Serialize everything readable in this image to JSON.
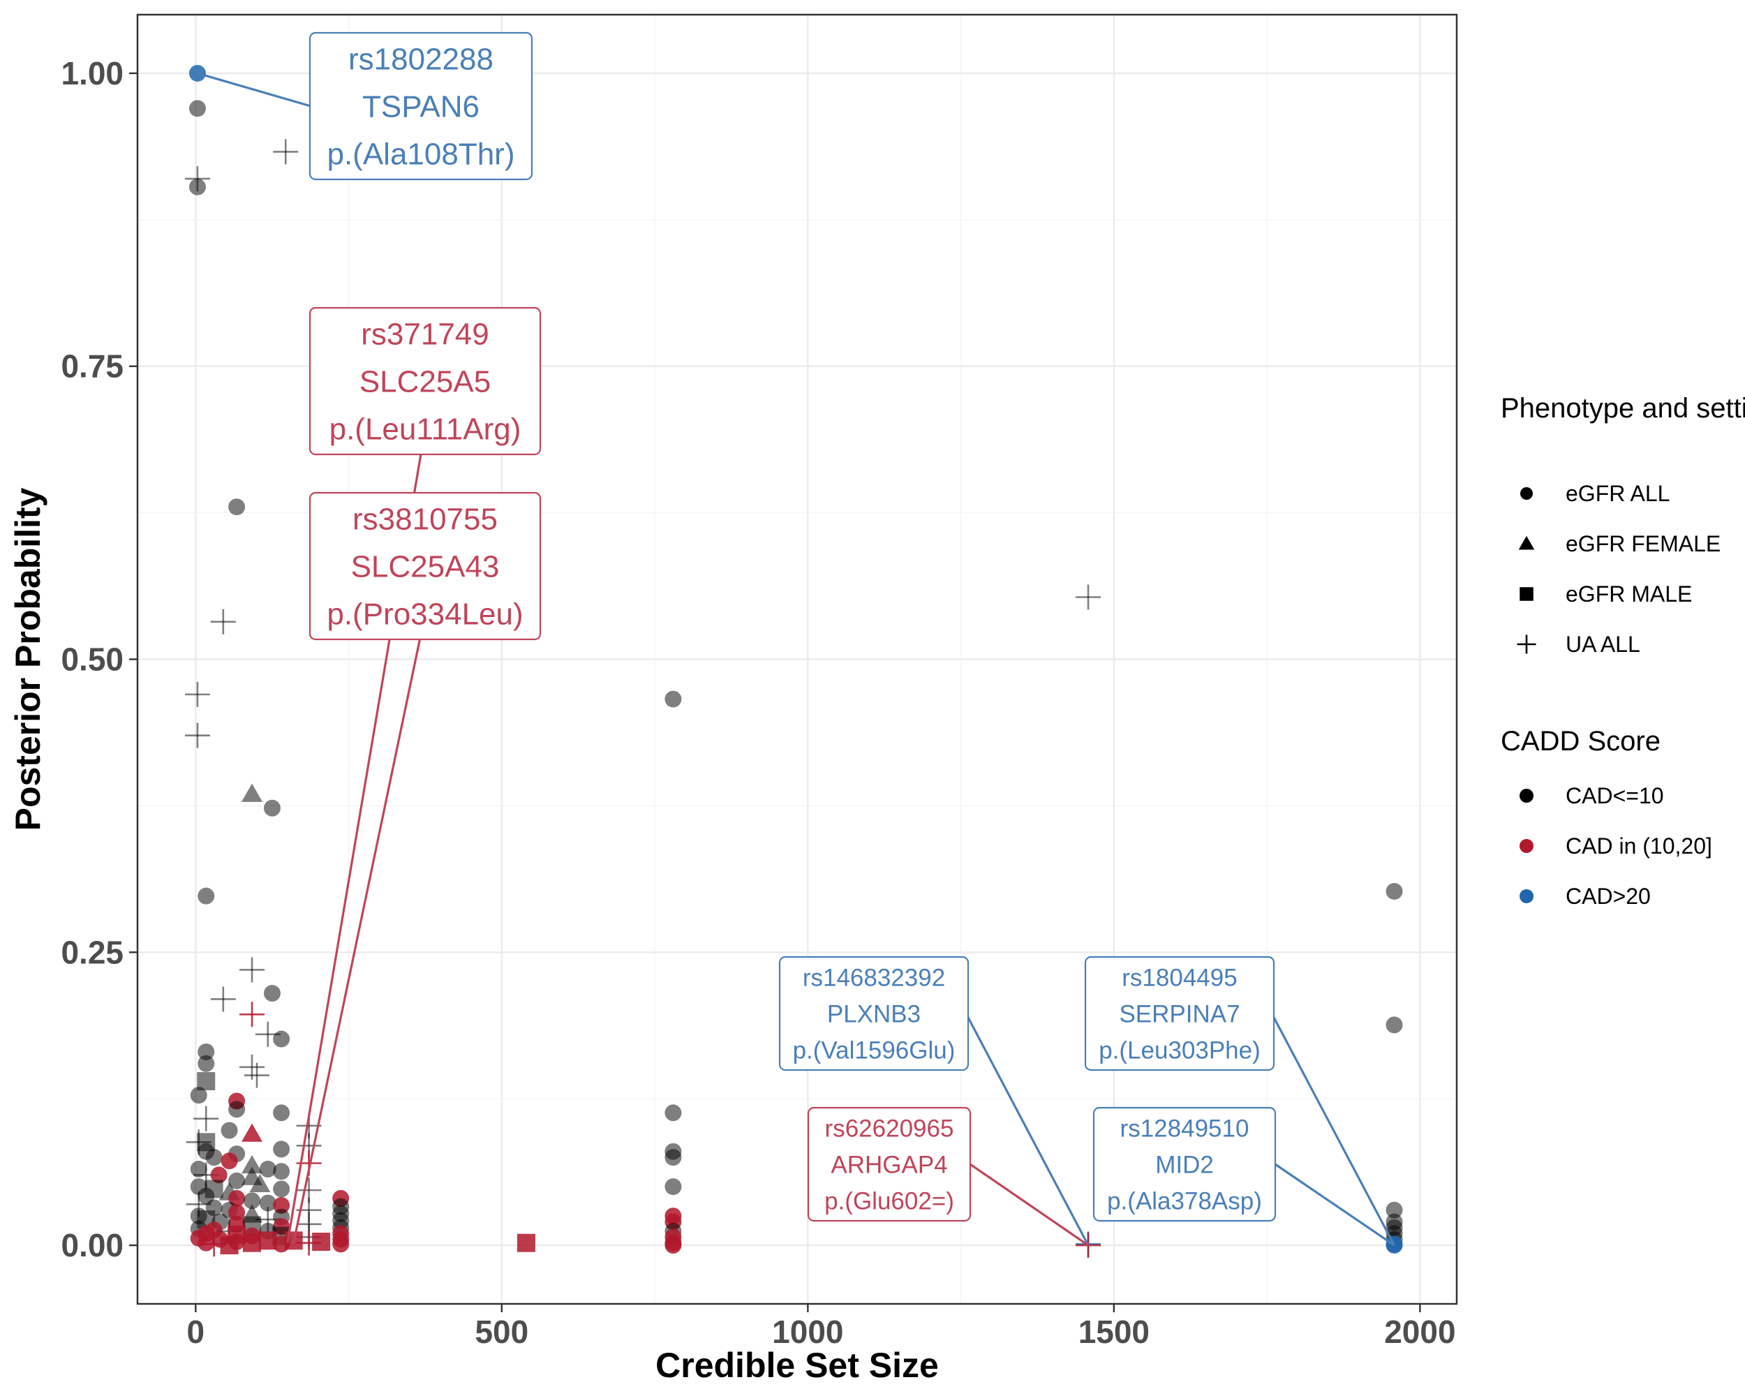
{
  "chart_data": {
    "type": "scatter",
    "xlabel": "Credible Set Size",
    "ylabel": "Posterior Probability",
    "xlim": [
      -95,
      2060
    ],
    "ylim": [
      -0.05,
      1.05
    ],
    "x_ticks": [
      0,
      500,
      1000,
      1500,
      2000
    ],
    "x_tick_labels": [
      "0",
      "500",
      "1000",
      "1500",
      "2000"
    ],
    "y_ticks": [
      0,
      0.25,
      0.5,
      0.75,
      1.0
    ],
    "y_tick_labels": [
      "0.00",
      "0.25",
      "0.50",
      "0.75",
      "1.00"
    ],
    "grid": true,
    "colors": {
      "low": "#000000",
      "mid": "#b2182b",
      "high": "#2166ac"
    },
    "legend_shape": {
      "title": "Phenotype and setting",
      "items": [
        {
          "shape": "circle",
          "label": "eGFR ALL"
        },
        {
          "shape": "triangle",
          "label": "eGFR FEMALE"
        },
        {
          "shape": "square",
          "label": "eGFR MALE"
        },
        {
          "shape": "plus",
          "label": "UA ALL"
        }
      ]
    },
    "legend_color": {
      "title": "CADD Score",
      "items": [
        {
          "color": "#000000",
          "label": "CAD<=10"
        },
        {
          "color": "#b2182b",
          "label": "CAD in (10,20]"
        },
        {
          "color": "#2166ac",
          "label": "CAD>20"
        }
      ]
    },
    "points": [
      {
        "x": 3,
        "y": 1.0,
        "shape": "circle",
        "cat": "high"
      },
      {
        "x": 3,
        "y": 0.97,
        "shape": "circle",
        "cat": "low"
      },
      {
        "x": 3,
        "y": 0.903,
        "shape": "circle",
        "cat": "low"
      },
      {
        "x": 3,
        "y": 0.91,
        "shape": "plus",
        "cat": "low"
      },
      {
        "x": 147,
        "y": 0.933,
        "shape": "plus",
        "cat": "low"
      },
      {
        "x": 67,
        "y": 0.63,
        "shape": "circle",
        "cat": "low"
      },
      {
        "x": 45,
        "y": 0.532,
        "shape": "plus",
        "cat": "low"
      },
      {
        "x": 3,
        "y": 0.47,
        "shape": "plus",
        "cat": "low"
      },
      {
        "x": 3,
        "y": 0.435,
        "shape": "plus",
        "cat": "low"
      },
      {
        "x": 92,
        "y": 0.385,
        "shape": "triangle",
        "cat": "low"
      },
      {
        "x": 125,
        "y": 0.373,
        "shape": "circle",
        "cat": "low"
      },
      {
        "x": 17,
        "y": 0.298,
        "shape": "circle",
        "cat": "low"
      },
      {
        "x": 92,
        "y": 0.235,
        "shape": "plus",
        "cat": "low"
      },
      {
        "x": 45,
        "y": 0.21,
        "shape": "plus",
        "cat": "low"
      },
      {
        "x": 125,
        "y": 0.215,
        "shape": "circle",
        "cat": "low"
      },
      {
        "x": 92,
        "y": 0.197,
        "shape": "plus",
        "cat": "mid"
      },
      {
        "x": 118,
        "y": 0.18,
        "shape": "plus",
        "cat": "low"
      },
      {
        "x": 140,
        "y": 0.176,
        "shape": "circle",
        "cat": "low"
      },
      {
        "x": 17,
        "y": 0.165,
        "shape": "circle",
        "cat": "low"
      },
      {
        "x": 17,
        "y": 0.155,
        "shape": "circle",
        "cat": "low"
      },
      {
        "x": 92,
        "y": 0.152,
        "shape": "plus",
        "cat": "low"
      },
      {
        "x": 100,
        "y": 0.145,
        "shape": "plus",
        "cat": "low"
      },
      {
        "x": 17,
        "y": 0.14,
        "shape": "square",
        "cat": "low"
      },
      {
        "x": 5,
        "y": 0.128,
        "shape": "circle",
        "cat": "low"
      },
      {
        "x": 67,
        "y": 0.123,
        "shape": "circle",
        "cat": "mid"
      },
      {
        "x": 67,
        "y": 0.116,
        "shape": "circle",
        "cat": "low"
      },
      {
        "x": 140,
        "y": 0.113,
        "shape": "circle",
        "cat": "low"
      },
      {
        "x": 17,
        "y": 0.108,
        "shape": "plus",
        "cat": "low"
      },
      {
        "x": 185,
        "y": 0.102,
        "shape": "plus",
        "cat": "low"
      },
      {
        "x": 55,
        "y": 0.098,
        "shape": "circle",
        "cat": "low"
      },
      {
        "x": 92,
        "y": 0.095,
        "shape": "triangle",
        "cat": "mid"
      },
      {
        "x": 5,
        "y": 0.088,
        "shape": "plus",
        "cat": "low"
      },
      {
        "x": 17,
        "y": 0.088,
        "shape": "square",
        "cat": "low"
      },
      {
        "x": 185,
        "y": 0.085,
        "shape": "plus",
        "cat": "low"
      },
      {
        "x": 140,
        "y": 0.082,
        "shape": "circle",
        "cat": "low"
      },
      {
        "x": 17,
        "y": 0.08,
        "shape": "circle",
        "cat": "low"
      },
      {
        "x": 67,
        "y": 0.078,
        "shape": "circle",
        "cat": "low"
      },
      {
        "x": 30,
        "y": 0.075,
        "shape": "circle",
        "cat": "low"
      },
      {
        "x": 55,
        "y": 0.072,
        "shape": "circle",
        "cat": "mid"
      },
      {
        "x": 185,
        "y": 0.07,
        "shape": "plus",
        "cat": "mid"
      },
      {
        "x": 92,
        "y": 0.068,
        "shape": "triangle",
        "cat": "low"
      },
      {
        "x": 5,
        "y": 0.065,
        "shape": "circle",
        "cat": "low"
      },
      {
        "x": 118,
        "y": 0.065,
        "shape": "circle",
        "cat": "low"
      },
      {
        "x": 140,
        "y": 0.063,
        "shape": "circle",
        "cat": "low"
      },
      {
        "x": 17,
        "y": 0.06,
        "shape": "plus",
        "cat": "low"
      },
      {
        "x": 38,
        "y": 0.06,
        "shape": "circle",
        "cat": "mid"
      },
      {
        "x": 92,
        "y": 0.058,
        "shape": "triangle",
        "cat": "low"
      },
      {
        "x": 67,
        "y": 0.055,
        "shape": "circle",
        "cat": "low"
      },
      {
        "x": 105,
        "y": 0.052,
        "shape": "triangle",
        "cat": "low"
      },
      {
        "x": 5,
        "y": 0.05,
        "shape": "circle",
        "cat": "low"
      },
      {
        "x": 30,
        "y": 0.048,
        "shape": "square",
        "cat": "low"
      },
      {
        "x": 140,
        "y": 0.048,
        "shape": "circle",
        "cat": "low"
      },
      {
        "x": 185,
        "y": 0.047,
        "shape": "plus",
        "cat": "low"
      },
      {
        "x": 55,
        "y": 0.045,
        "shape": "triangle",
        "cat": "low"
      },
      {
        "x": 17,
        "y": 0.042,
        "shape": "circle",
        "cat": "low"
      },
      {
        "x": 67,
        "y": 0.04,
        "shape": "circle",
        "cat": "mid"
      },
      {
        "x": 237,
        "y": 0.04,
        "shape": "circle",
        "cat": "mid"
      },
      {
        "x": 92,
        "y": 0.038,
        "shape": "circle",
        "cat": "low"
      },
      {
        "x": 118,
        "y": 0.036,
        "shape": "circle",
        "cat": "low"
      },
      {
        "x": 5,
        "y": 0.035,
        "shape": "plus",
        "cat": "low"
      },
      {
        "x": 140,
        "y": 0.034,
        "shape": "circle",
        "cat": "mid"
      },
      {
        "x": 237,
        "y": 0.033,
        "shape": "circle",
        "cat": "low"
      },
      {
        "x": 30,
        "y": 0.032,
        "shape": "circle",
        "cat": "low"
      },
      {
        "x": 185,
        "y": 0.03,
        "shape": "plus",
        "cat": "low"
      },
      {
        "x": 55,
        "y": 0.03,
        "shape": "circle",
        "cat": "low"
      },
      {
        "x": 67,
        "y": 0.028,
        "shape": "circle",
        "cat": "mid"
      },
      {
        "x": 237,
        "y": 0.027,
        "shape": "circle",
        "cat": "low"
      },
      {
        "x": 92,
        "y": 0.026,
        "shape": "triangle",
        "cat": "low"
      },
      {
        "x": 5,
        "y": 0.025,
        "shape": "circle",
        "cat": "low"
      },
      {
        "x": 140,
        "y": 0.024,
        "shape": "circle",
        "cat": "low"
      },
      {
        "x": 17,
        "y": 0.022,
        "shape": "square",
        "cat": "low"
      },
      {
        "x": 118,
        "y": 0.022,
        "shape": "plus",
        "cat": "low"
      },
      {
        "x": 237,
        "y": 0.021,
        "shape": "circle",
        "cat": "low"
      },
      {
        "x": 40,
        "y": 0.02,
        "shape": "circle",
        "cat": "low"
      },
      {
        "x": 67,
        "y": 0.018,
        "shape": "circle",
        "cat": "mid"
      },
      {
        "x": 185,
        "y": 0.018,
        "shape": "plus",
        "cat": "low"
      },
      {
        "x": 92,
        "y": 0.017,
        "shape": "square",
        "cat": "low"
      },
      {
        "x": 140,
        "y": 0.016,
        "shape": "circle",
        "cat": "mid"
      },
      {
        "x": 237,
        "y": 0.015,
        "shape": "circle",
        "cat": "low"
      },
      {
        "x": 5,
        "y": 0.014,
        "shape": "circle",
        "cat": "low"
      },
      {
        "x": 30,
        "y": 0.013,
        "shape": "circle",
        "cat": "mid"
      },
      {
        "x": 55,
        "y": 0.012,
        "shape": "plus",
        "cat": "low"
      },
      {
        "x": 118,
        "y": 0.012,
        "shape": "circle",
        "cat": "low"
      },
      {
        "x": 237,
        "y": 0.01,
        "shape": "circle",
        "cat": "mid"
      },
      {
        "x": 17,
        "y": 0.01,
        "shape": "circle",
        "cat": "mid"
      },
      {
        "x": 67,
        "y": 0.009,
        "shape": "square",
        "cat": "mid"
      },
      {
        "x": 92,
        "y": 0.008,
        "shape": "circle",
        "cat": "mid"
      },
      {
        "x": 140,
        "y": 0.008,
        "shape": "square",
        "cat": "low"
      },
      {
        "x": 185,
        "y": 0.007,
        "shape": "plus",
        "cat": "low"
      },
      {
        "x": 5,
        "y": 0.006,
        "shape": "circle",
        "cat": "mid"
      },
      {
        "x": 237,
        "y": 0.005,
        "shape": "circle",
        "cat": "mid"
      },
      {
        "x": 40,
        "y": 0.005,
        "shape": "circle",
        "cat": "mid"
      },
      {
        "x": 118,
        "y": 0.004,
        "shape": "square",
        "cat": "mid"
      },
      {
        "x": 160,
        "y": 0.004,
        "shape": "square",
        "cat": "mid"
      },
      {
        "x": 67,
        "y": 0.003,
        "shape": "circle",
        "cat": "mid"
      },
      {
        "x": 92,
        "y": 0.002,
        "shape": "square",
        "cat": "mid"
      },
      {
        "x": 17,
        "y": 0.002,
        "shape": "circle",
        "cat": "mid"
      },
      {
        "x": 185,
        "y": 0.002,
        "shape": "plus",
        "cat": "mid"
      },
      {
        "x": 237,
        "y": 0.001,
        "shape": "circle",
        "cat": "mid"
      },
      {
        "x": 140,
        "y": 0.001,
        "shape": "circle",
        "cat": "mid"
      },
      {
        "x": 30,
        "y": 0.001,
        "shape": "plus",
        "cat": "mid"
      },
      {
        "x": 55,
        "y": 0.0,
        "shape": "square",
        "cat": "mid"
      },
      {
        "x": 205,
        "y": 0.003,
        "shape": "square",
        "cat": "mid"
      },
      {
        "x": 540,
        "y": 0.002,
        "shape": "square",
        "cat": "mid"
      },
      {
        "x": 780,
        "y": 0.466,
        "shape": "circle",
        "cat": "low"
      },
      {
        "x": 780,
        "y": 0.113,
        "shape": "circle",
        "cat": "low"
      },
      {
        "x": 780,
        "y": 0.08,
        "shape": "circle",
        "cat": "low"
      },
      {
        "x": 780,
        "y": 0.075,
        "shape": "circle",
        "cat": "low"
      },
      {
        "x": 780,
        "y": 0.05,
        "shape": "circle",
        "cat": "low"
      },
      {
        "x": 780,
        "y": 0.025,
        "shape": "circle",
        "cat": "mid"
      },
      {
        "x": 780,
        "y": 0.02,
        "shape": "circle",
        "cat": "mid"
      },
      {
        "x": 780,
        "y": 0.012,
        "shape": "circle",
        "cat": "low"
      },
      {
        "x": 780,
        "y": 0.007,
        "shape": "circle",
        "cat": "mid"
      },
      {
        "x": 780,
        "y": 0.002,
        "shape": "circle",
        "cat": "mid"
      },
      {
        "x": 780,
        "y": 0.0,
        "shape": "circle",
        "cat": "mid"
      },
      {
        "x": 1458,
        "y": 0.553,
        "shape": "plus",
        "cat": "low"
      },
      {
        "x": 1458,
        "y": 0.001,
        "shape": "plus",
        "cat": "high"
      },
      {
        "x": 1458,
        "y": 0.0,
        "shape": "plus",
        "cat": "mid"
      },
      {
        "x": 1958,
        "y": 0.302,
        "shape": "circle",
        "cat": "low"
      },
      {
        "x": 1958,
        "y": 0.188,
        "shape": "circle",
        "cat": "low"
      },
      {
        "x": 1958,
        "y": 0.03,
        "shape": "circle",
        "cat": "low"
      },
      {
        "x": 1958,
        "y": 0.02,
        "shape": "circle",
        "cat": "low"
      },
      {
        "x": 1958,
        "y": 0.015,
        "shape": "circle",
        "cat": "low"
      },
      {
        "x": 1958,
        "y": 0.01,
        "shape": "circle",
        "cat": "low"
      },
      {
        "x": 1958,
        "y": 0.005,
        "shape": "circle",
        "cat": "low"
      },
      {
        "x": 1958,
        "y": 0.001,
        "shape": "circle",
        "cat": "high"
      },
      {
        "x": 1958,
        "y": 0.0,
        "shape": "circle",
        "cat": "high"
      }
    ],
    "annotations": [
      {
        "lines": [
          "rs1802288",
          "TSPAN6",
          "p.(Ala108Thr)"
        ],
        "cat": "high",
        "point": [
          3,
          1.0
        ]
      },
      {
        "lines": [
          "rs371749",
          "SLC25A5",
          "p.(Leu111Arg)"
        ],
        "cat": "mid",
        "point": [
          150,
          0.002
        ]
      },
      {
        "lines": [
          "rs3810755",
          "SLC25A43",
          "p.(Pro334Leu)"
        ],
        "cat": "mid",
        "point": [
          160,
          0.002
        ]
      },
      {
        "lines": [
          "rs146832392",
          "PLXNB3",
          "p.(Val1596Glu)"
        ],
        "cat": "high",
        "point": [
          1458,
          0.0
        ]
      },
      {
        "lines": [
          "rs62620965",
          "ARHGAP4",
          "p.(Glu602=)"
        ],
        "cat": "mid",
        "point": [
          1458,
          0.0
        ]
      },
      {
        "lines": [
          "rs1804495",
          "SERPINA7",
          "p.(Leu303Phe)"
        ],
        "cat": "high",
        "point": [
          1958,
          0.0
        ]
      },
      {
        "lines": [
          "rs12849510",
          "MID2",
          "p.(Ala378Asp)"
        ],
        "cat": "high",
        "point": [
          1958,
          0.0
        ]
      }
    ]
  }
}
